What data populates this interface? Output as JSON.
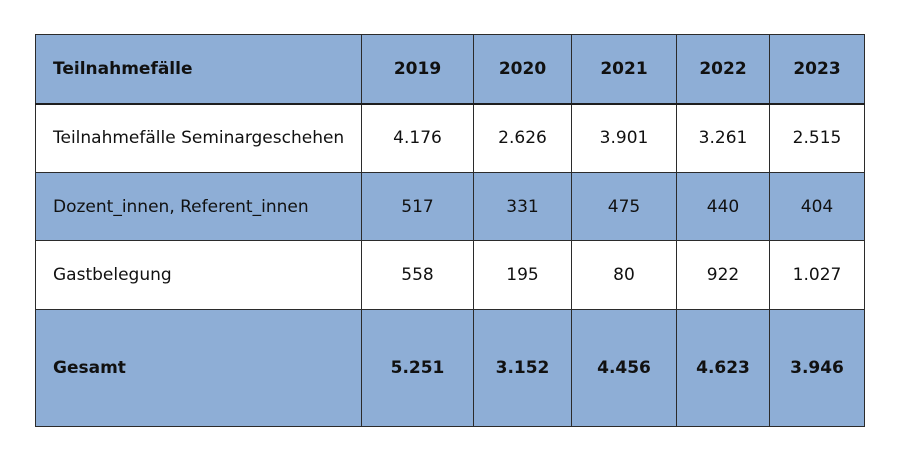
{
  "table": {
    "header": {
      "label": "Teilnahmefälle",
      "years": [
        "2019",
        "2020",
        "2021",
        "2022",
        "2023"
      ]
    },
    "rows": [
      {
        "label": "Teilnahmefälle Seminargeschehen",
        "values": [
          "4.176",
          "2.626",
          "3.901",
          "3.261",
          "2.515"
        ]
      },
      {
        "label": "Dozent_innen, Referent_innen",
        "values": [
          "517",
          "331",
          "475",
          "440",
          "404"
        ]
      },
      {
        "label": "Gastbelegung",
        "values": [
          "558",
          "195",
          "80",
          "922",
          "1.027"
        ]
      }
    ],
    "total": {
      "label": "Gesamt",
      "values": [
        "5.251",
        "3.152",
        "4.456",
        "4.623",
        "3.946"
      ]
    }
  },
  "colors": {
    "blue_row": "#8eaed6",
    "white_row": "#ffffff",
    "border": "#2b2b2b"
  }
}
